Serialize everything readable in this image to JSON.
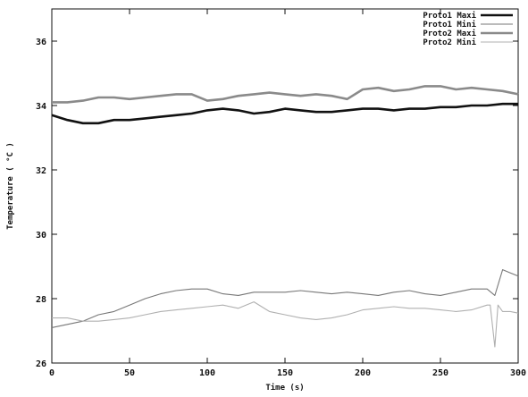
{
  "chart_data": {
    "type": "line",
    "title": "",
    "xlabel": "Time (s)",
    "ylabel": "Temperature ( °C )",
    "xlim": [
      0,
      300
    ],
    "ylim": [
      26,
      37
    ],
    "xticks": [
      0,
      50,
      100,
      150,
      200,
      250,
      300
    ],
    "yticks": [
      26,
      28,
      30,
      32,
      34,
      36
    ],
    "ytick_labels": [
      "26",
      "28",
      "30",
      "32",
      "34",
      "36"
    ],
    "legend_position": "top-right",
    "grid": false,
    "series": [
      {
        "name": "Proto1 Maxi",
        "color": "#111111",
        "stroke": "thick",
        "x": [
          0,
          10,
          20,
          30,
          40,
          50,
          60,
          70,
          80,
          90,
          100,
          110,
          120,
          130,
          140,
          150,
          160,
          170,
          180,
          190,
          200,
          210,
          220,
          230,
          240,
          250,
          260,
          270,
          280,
          290,
          300
        ],
        "y": [
          33.7,
          33.55,
          33.45,
          33.45,
          33.55,
          33.55,
          33.6,
          33.65,
          33.7,
          33.75,
          33.85,
          33.9,
          33.85,
          33.75,
          33.8,
          33.9,
          33.85,
          33.8,
          33.8,
          33.85,
          33.9,
          33.9,
          33.85,
          33.9,
          33.9,
          33.95,
          33.95,
          34.0,
          34.0,
          34.05,
          34.05
        ]
      },
      {
        "name": "Proto1 Mini",
        "color": "#777777",
        "stroke": "thin",
        "x": [
          0,
          10,
          20,
          30,
          40,
          50,
          60,
          70,
          80,
          90,
          100,
          110,
          120,
          130,
          140,
          150,
          160,
          170,
          180,
          190,
          200,
          210,
          220,
          230,
          240,
          250,
          260,
          270,
          280,
          285,
          290,
          295,
          300
        ],
        "y": [
          27.1,
          27.2,
          27.3,
          27.5,
          27.6,
          27.8,
          28.0,
          28.15,
          28.25,
          28.3,
          28.3,
          28.15,
          28.1,
          28.2,
          28.2,
          28.2,
          28.25,
          28.2,
          28.15,
          28.2,
          28.15,
          28.1,
          28.2,
          28.25,
          28.15,
          28.1,
          28.2,
          28.3,
          28.3,
          28.1,
          28.9,
          28.8,
          28.7
        ]
      },
      {
        "name": "Proto2 Maxi",
        "color": "#8a8a8a",
        "stroke": "thick",
        "x": [
          0,
          10,
          20,
          30,
          40,
          50,
          60,
          70,
          80,
          90,
          100,
          110,
          120,
          130,
          140,
          150,
          160,
          170,
          180,
          190,
          200,
          210,
          220,
          230,
          240,
          250,
          260,
          270,
          280,
          290,
          300
        ],
        "y": [
          34.1,
          34.1,
          34.15,
          34.25,
          34.25,
          34.2,
          34.25,
          34.3,
          34.35,
          34.35,
          34.15,
          34.2,
          34.3,
          34.35,
          34.4,
          34.35,
          34.3,
          34.35,
          34.3,
          34.2,
          34.5,
          34.55,
          34.45,
          34.5,
          34.6,
          34.6,
          34.5,
          34.55,
          34.5,
          34.45,
          34.35
        ]
      },
      {
        "name": "Proto2 Mini",
        "color": "#b0b0b0",
        "stroke": "thin",
        "x": [
          0,
          10,
          20,
          30,
          40,
          50,
          60,
          70,
          80,
          90,
          100,
          110,
          120,
          130,
          140,
          150,
          160,
          170,
          180,
          190,
          200,
          210,
          220,
          230,
          240,
          250,
          260,
          270,
          280,
          282,
          285,
          287,
          290,
          295,
          300
        ],
        "y": [
          27.4,
          27.4,
          27.3,
          27.3,
          27.35,
          27.4,
          27.5,
          27.6,
          27.65,
          27.7,
          27.75,
          27.8,
          27.7,
          27.9,
          27.6,
          27.5,
          27.4,
          27.35,
          27.4,
          27.5,
          27.65,
          27.7,
          27.75,
          27.7,
          27.7,
          27.65,
          27.6,
          27.65,
          27.8,
          27.8,
          26.5,
          27.8,
          27.6,
          27.6,
          27.55
        ]
      }
    ]
  }
}
